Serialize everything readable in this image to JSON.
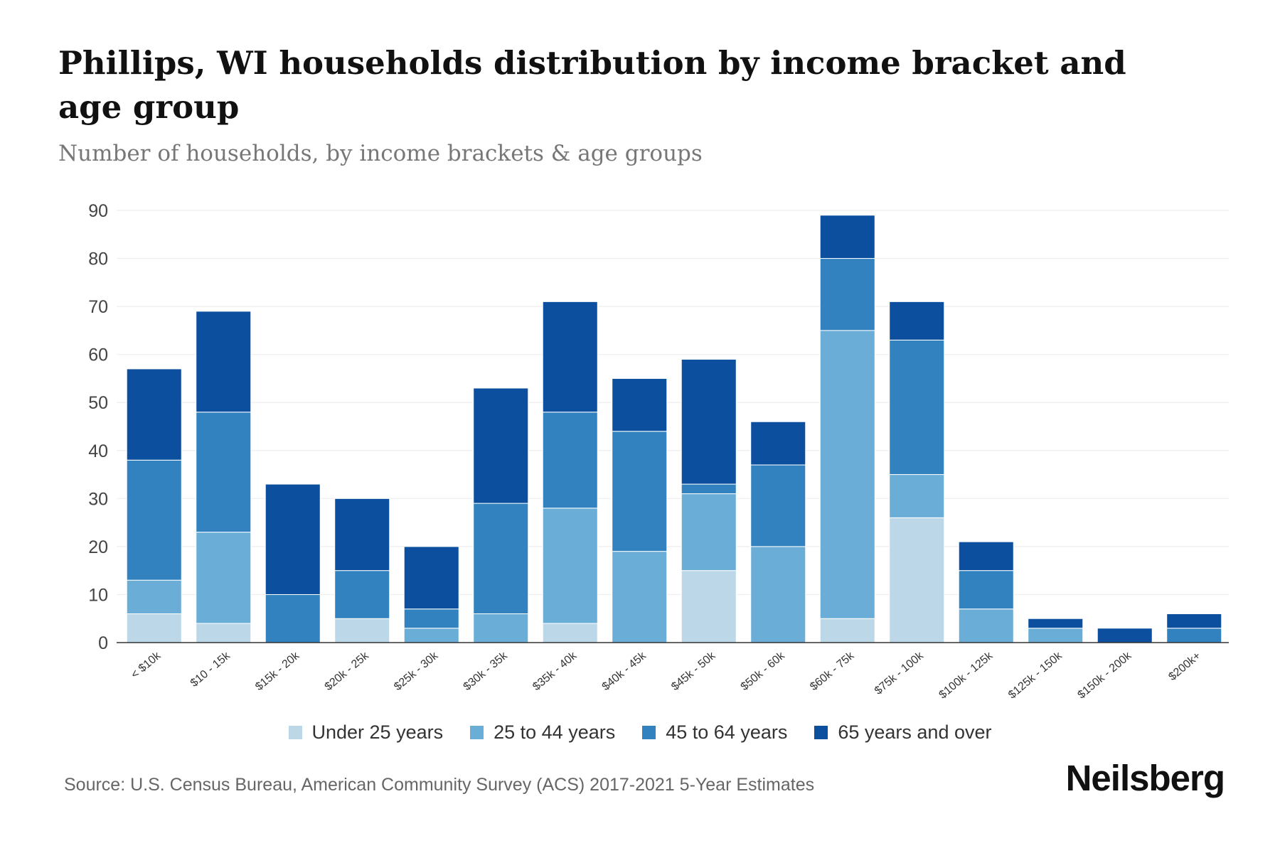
{
  "header": {
    "title": "Phillips, WI households distribution by income bracket and age group",
    "subtitle": "Number of households, by income brackets & age groups"
  },
  "footer": {
    "source": "Source: U.S. Census Bureau, American Community Survey (ACS) 2017-2021 5-Year Estimates",
    "brand": "Neilsberg"
  },
  "colors": {
    "under_25": "#bcd8e8",
    "age_25_44": "#6aadd6",
    "age_45_64": "#3182bf",
    "age_65_plus": "#0b4f9e",
    "grid": "#eeeeee",
    "axis": "#333333"
  },
  "chart_data": {
    "type": "bar",
    "stacked": true,
    "title": "Phillips, WI households distribution by income bracket and age group",
    "subtitle": "Number of households, by income brackets & age groups",
    "xlabel": "",
    "ylabel": "",
    "ylim": [
      0,
      90
    ],
    "yticks": [
      0,
      10,
      20,
      30,
      40,
      50,
      60,
      70,
      80,
      90
    ],
    "grid": true,
    "legend_position": "bottom",
    "categories": [
      "< $10k",
      "$10 - 15k",
      "$15k - 20k",
      "$20k - 25k",
      "$25k - 30k",
      "$30k - 35k",
      "$35k - 40k",
      "$40k - 45k",
      "$45k - 50k",
      "$50k - 60k",
      "$60k - 75k",
      "$75k - 100k",
      "$100k - 125k",
      "$125k - 150k",
      "$150k - 200k",
      "$200k+"
    ],
    "series": [
      {
        "name": "Under 25 years",
        "color": "#bcd8e8",
        "values": [
          6,
          4,
          0,
          5,
          0,
          0,
          4,
          0,
          15,
          0,
          5,
          26,
          0,
          0,
          0,
          0
        ]
      },
      {
        "name": "25 to 44 years",
        "color": "#6aadd6",
        "values": [
          7,
          19,
          0,
          0,
          3,
          6,
          24,
          19,
          16,
          20,
          60,
          9,
          7,
          3,
          0,
          0
        ]
      },
      {
        "name": "45 to 64 years",
        "color": "#3182bf",
        "values": [
          25,
          25,
          10,
          10,
          4,
          23,
          20,
          25,
          2,
          17,
          15,
          28,
          8,
          0,
          0,
          3
        ]
      },
      {
        "name": "65 years and over",
        "color": "#0b4f9e",
        "values": [
          19,
          21,
          23,
          15,
          13,
          24,
          23,
          11,
          26,
          9,
          9,
          8,
          6,
          2,
          3,
          3
        ]
      }
    ]
  }
}
